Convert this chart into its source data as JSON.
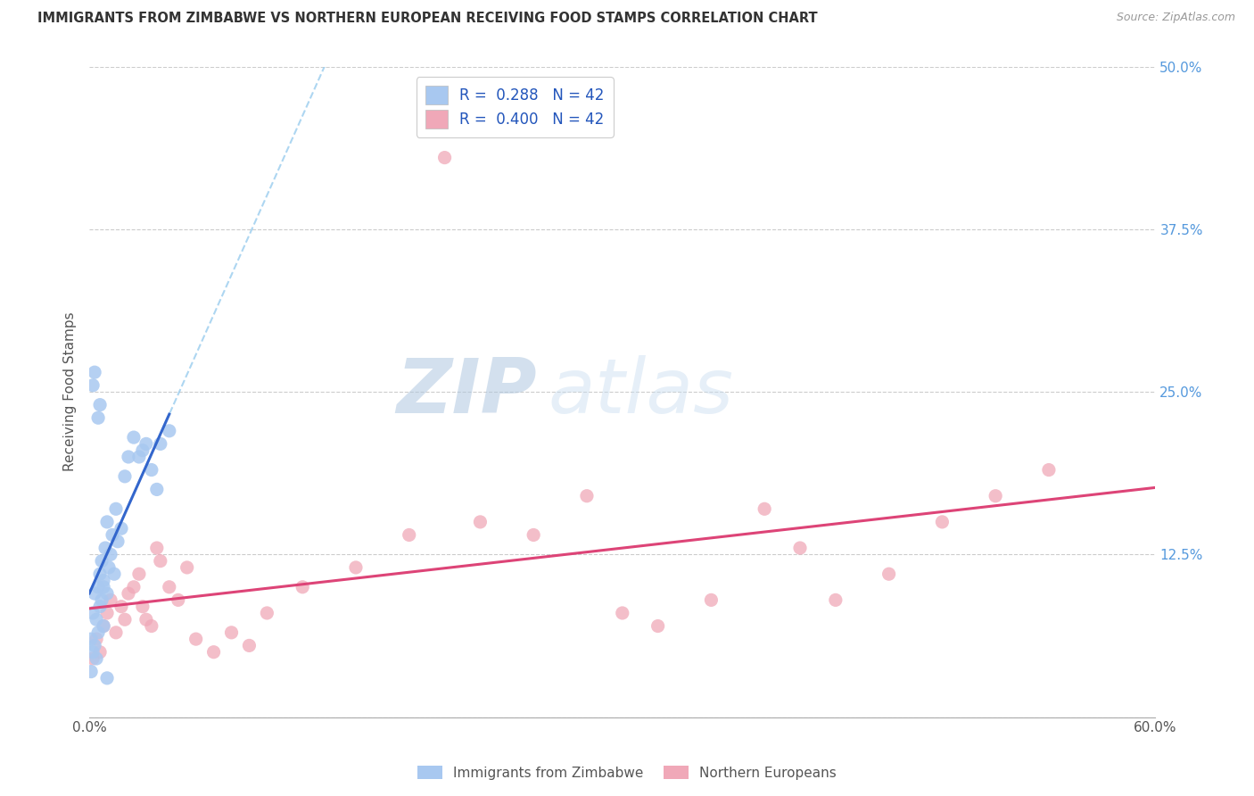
{
  "title": "IMMIGRANTS FROM ZIMBABWE VS NORTHERN EUROPEAN RECEIVING FOOD STAMPS CORRELATION CHART",
  "source": "Source: ZipAtlas.com",
  "ylabel": "Receiving Food Stamps",
  "xlim": [
    0.0,
    0.6
  ],
  "ylim": [
    0.0,
    0.5
  ],
  "zimbabwe_R": 0.288,
  "zimbabwe_N": 42,
  "northern_R": 0.4,
  "northern_N": 42,
  "zimbabwe_color": "#a8c8f0",
  "northern_color": "#f0a8b8",
  "zimbabwe_solid_line_color": "#3366cc",
  "zimbabwe_dashed_line_color": "#99ccee",
  "northern_line_color": "#dd4477",
  "watermark": "ZIPatlas",
  "watermark_color": "#c8d8ea",
  "zim_x": [
    0.001,
    0.001,
    0.002,
    0.002,
    0.003,
    0.003,
    0.004,
    0.004,
    0.005,
    0.005,
    0.006,
    0.006,
    0.007,
    0.007,
    0.008,
    0.008,
    0.009,
    0.01,
    0.01,
    0.011,
    0.012,
    0.013,
    0.014,
    0.015,
    0.016,
    0.018,
    0.02,
    0.022,
    0.025,
    0.028,
    0.03,
    0.032,
    0.035,
    0.038,
    0.04,
    0.045,
    0.002,
    0.003,
    0.005,
    0.006,
    0.008,
    0.01
  ],
  "zim_y": [
    0.035,
    0.06,
    0.05,
    0.08,
    0.055,
    0.095,
    0.045,
    0.075,
    0.065,
    0.1,
    0.085,
    0.11,
    0.09,
    0.12,
    0.07,
    0.105,
    0.13,
    0.095,
    0.15,
    0.115,
    0.125,
    0.14,
    0.11,
    0.16,
    0.135,
    0.145,
    0.185,
    0.2,
    0.215,
    0.2,
    0.205,
    0.21,
    0.19,
    0.175,
    0.21,
    0.22,
    0.255,
    0.265,
    0.23,
    0.24,
    0.1,
    0.03
  ],
  "nor_x": [
    0.002,
    0.004,
    0.006,
    0.008,
    0.01,
    0.012,
    0.015,
    0.018,
    0.02,
    0.022,
    0.025,
    0.028,
    0.03,
    0.032,
    0.035,
    0.038,
    0.04,
    0.045,
    0.05,
    0.055,
    0.06,
    0.07,
    0.08,
    0.09,
    0.1,
    0.12,
    0.15,
    0.18,
    0.2,
    0.22,
    0.25,
    0.28,
    0.3,
    0.32,
    0.35,
    0.38,
    0.4,
    0.42,
    0.45,
    0.48,
    0.51,
    0.54
  ],
  "nor_y": [
    0.045,
    0.06,
    0.05,
    0.07,
    0.08,
    0.09,
    0.065,
    0.085,
    0.075,
    0.095,
    0.1,
    0.11,
    0.085,
    0.075,
    0.07,
    0.13,
    0.12,
    0.1,
    0.09,
    0.115,
    0.06,
    0.05,
    0.065,
    0.055,
    0.08,
    0.1,
    0.115,
    0.14,
    0.43,
    0.15,
    0.14,
    0.17,
    0.08,
    0.07,
    0.09,
    0.16,
    0.13,
    0.09,
    0.11,
    0.15,
    0.17,
    0.19
  ]
}
